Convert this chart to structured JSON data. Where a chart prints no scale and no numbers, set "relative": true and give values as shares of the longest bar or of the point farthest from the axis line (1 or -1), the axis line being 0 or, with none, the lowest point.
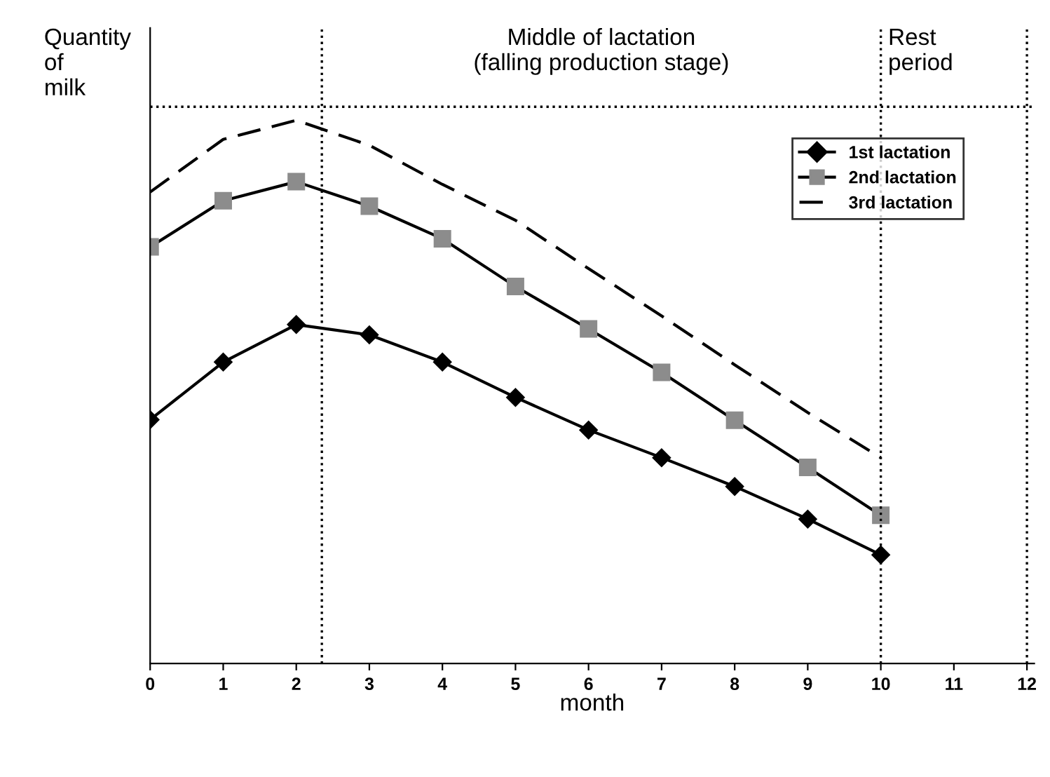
{
  "chart_data": {
    "type": "line",
    "relative": true,
    "ylabel": "Quantity\nof\nmilk",
    "xlabel": "month",
    "x": [
      0,
      1,
      2,
      3,
      4,
      5,
      6,
      7,
      8,
      9,
      10
    ],
    "xlim": [
      0,
      12.1
    ],
    "xticks": [
      0,
      1,
      2,
      3,
      4,
      5,
      6,
      7,
      8,
      9,
      10,
      11,
      12
    ],
    "series": [
      {
        "name": "1st lactation",
        "color": "#000000",
        "marker": "diamond",
        "line_style": "solid",
        "values": [
          0.449,
          0.555,
          0.624,
          0.605,
          0.555,
          0.49,
          0.43,
          0.379,
          0.326,
          0.266,
          0.2
        ]
      },
      {
        "name": "2nd lactation",
        "color": "#8c8c8c",
        "marker": "square",
        "line_style": "solid",
        "values": [
          0.767,
          0.852,
          0.887,
          0.842,
          0.782,
          0.694,
          0.616,
          0.536,
          0.448,
          0.361,
          0.273
        ]
      },
      {
        "name": "3rd lactation",
        "color": "#000000",
        "marker": "none",
        "line_style": "dashed",
        "values": [
          0.868,
          0.965,
          1.0,
          0.954,
          0.882,
          0.816,
          0.727,
          0.64,
          0.55,
          0.462,
          0.379
        ]
      }
    ],
    "ref_lines": [
      {
        "axis": "x",
        "value": 2.35,
        "line_style": "dotted"
      },
      {
        "axis": "x",
        "value": 10,
        "line_style": "dotted"
      },
      {
        "axis": "x",
        "value": 12,
        "line_style": "dotted"
      },
      {
        "axis": "y",
        "value": 1.025,
        "line_style": "dotted"
      }
    ],
    "annotations": [
      "Middle of lactation\n(falling production stage)",
      "Rest\nperiod"
    ],
    "legend": "top right",
    "grid": false
  }
}
